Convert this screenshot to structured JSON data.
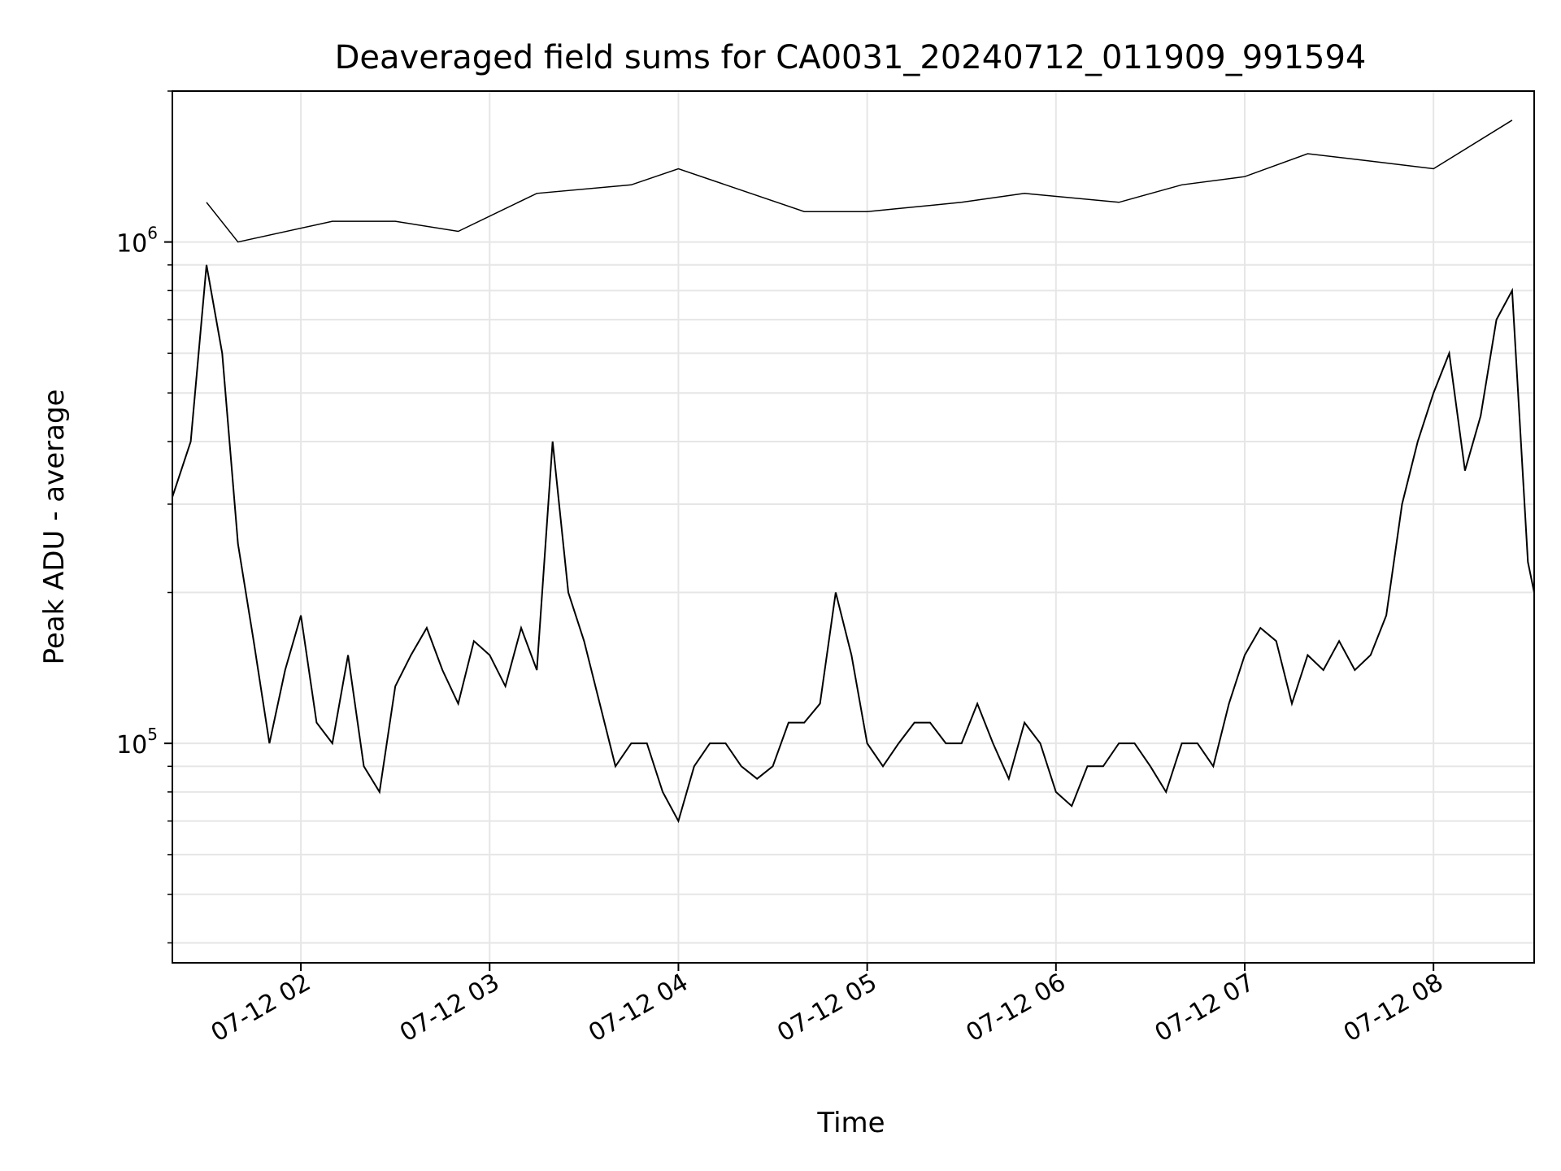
{
  "chart_data": {
    "type": "line",
    "title": "Deaveraged field sums for CA0031_20240712_011909_991594",
    "xlabel": "Time",
    "ylabel": "Peak ADU - average",
    "yscale": "log",
    "ylim": [
      36500,
      2000000
    ],
    "xlim": [
      "2024-07-12 01:19:09",
      "2024-07-12 08:32:00"
    ],
    "grid": true,
    "line_color": "#000000",
    "x_ticks": [
      "07-12 02",
      "07-12 03",
      "07-12 04",
      "07-12 05",
      "07-12 06",
      "07-12 07",
      "07-12 08"
    ],
    "x_tick_times": [
      "2024-07-12 02:00",
      "2024-07-12 03:00",
      "2024-07-12 04:00",
      "2024-07-12 05:00",
      "2024-07-12 06:00",
      "2024-07-12 07:00",
      "2024-07-12 08:00"
    ],
    "y_ticks": [
      {
        "value": 100000,
        "base": "10",
        "exp": "5"
      },
      {
        "value": 1000000,
        "base": "10",
        "exp": "6"
      }
    ],
    "series": [
      {
        "x": [
          "2024-07-12 01:19:09",
          "2024-07-12 01:25",
          "2024-07-12 01:30",
          "2024-07-12 01:35",
          "2024-07-12 01:40",
          "2024-07-12 01:45",
          "2024-07-12 01:50",
          "2024-07-12 01:55",
          "2024-07-12 02:00",
          "2024-07-12 02:05",
          "2024-07-12 02:10",
          "2024-07-12 02:15",
          "2024-07-12 02:20",
          "2024-07-12 02:25",
          "2024-07-12 02:30",
          "2024-07-12 02:35",
          "2024-07-12 02:40",
          "2024-07-12 02:45",
          "2024-07-12 02:50",
          "2024-07-12 02:55",
          "2024-07-12 03:00",
          "2024-07-12 03:05",
          "2024-07-12 03:10",
          "2024-07-12 03:15",
          "2024-07-12 03:20",
          "2024-07-12 03:25",
          "2024-07-12 03:30",
          "2024-07-12 03:35",
          "2024-07-12 03:40",
          "2024-07-12 03:45",
          "2024-07-12 03:50",
          "2024-07-12 03:55",
          "2024-07-12 04:00",
          "2024-07-12 04:05",
          "2024-07-12 04:10",
          "2024-07-12 04:15",
          "2024-07-12 04:20",
          "2024-07-12 04:25",
          "2024-07-12 04:30",
          "2024-07-12 04:35",
          "2024-07-12 04:40",
          "2024-07-12 04:45",
          "2024-07-12 04:50",
          "2024-07-12 04:55",
          "2024-07-12 05:00",
          "2024-07-12 05:05",
          "2024-07-12 05:10",
          "2024-07-12 05:15",
          "2024-07-12 05:20",
          "2024-07-12 05:25",
          "2024-07-12 05:30",
          "2024-07-12 05:35",
          "2024-07-12 05:40",
          "2024-07-12 05:45",
          "2024-07-12 05:50",
          "2024-07-12 05:55",
          "2024-07-12 06:00",
          "2024-07-12 06:05",
          "2024-07-12 06:10",
          "2024-07-12 06:15",
          "2024-07-12 06:20",
          "2024-07-12 06:25",
          "2024-07-12 06:30",
          "2024-07-12 06:35",
          "2024-07-12 06:40",
          "2024-07-12 06:45",
          "2024-07-12 06:50",
          "2024-07-12 06:55",
          "2024-07-12 07:00",
          "2024-07-12 07:05",
          "2024-07-12 07:10",
          "2024-07-12 07:15",
          "2024-07-12 07:20",
          "2024-07-12 07:25",
          "2024-07-12 07:30",
          "2024-07-12 07:35",
          "2024-07-12 07:40",
          "2024-07-12 07:45",
          "2024-07-12 07:50",
          "2024-07-12 07:55",
          "2024-07-12 08:00",
          "2024-07-12 08:05",
          "2024-07-12 08:10",
          "2024-07-12 08:15",
          "2024-07-12 08:20",
          "2024-07-12 08:25",
          "2024-07-12 08:30",
          "2024-07-12 08:32"
        ],
        "y": [
          310000,
          400000,
          900000,
          600000,
          250000,
          160000,
          100000,
          140000,
          180000,
          110000,
          100000,
          150000,
          90000,
          80000,
          130000,
          150000,
          170000,
          140000,
          120000,
          160000,
          150000,
          130000,
          170000,
          140000,
          400000,
          200000,
          160000,
          120000,
          90000,
          100000,
          100000,
          80000,
          70000,
          90000,
          100000,
          100000,
          90000,
          85000,
          90000,
          110000,
          110000,
          120000,
          200000,
          150000,
          100000,
          90000,
          100000,
          110000,
          110000,
          100000,
          100000,
          120000,
          100000,
          85000,
          110000,
          100000,
          80000,
          75000,
          90000,
          90000,
          100000,
          100000,
          90000,
          80000,
          100000,
          100000,
          90000,
          120000,
          150000,
          170000,
          160000,
          120000,
          150000,
          140000,
          160000,
          140000,
          150000,
          180000,
          300000,
          400000,
          500000,
          600000,
          350000,
          450000,
          700000,
          800000,
          230000,
          200000
        ]
      },
      {
        "x": [
          "2024-07-12 01:30",
          "2024-07-12 01:40",
          "2024-07-12 02:10",
          "2024-07-12 02:30",
          "2024-07-12 02:50",
          "2024-07-12 03:15",
          "2024-07-12 03:45",
          "2024-07-12 04:00",
          "2024-07-12 04:15",
          "2024-07-12 04:40",
          "2024-07-12 05:00",
          "2024-07-12 05:30",
          "2024-07-12 05:50",
          "2024-07-12 06:20",
          "2024-07-12 06:40",
          "2024-07-12 07:00",
          "2024-07-12 07:20",
          "2024-07-12 07:40",
          "2024-07-12 08:00",
          "2024-07-12 08:25"
        ],
        "y": [
          1200000,
          1000000,
          1100000,
          1100000,
          1050000,
          1250000,
          1300000,
          1400000,
          1300000,
          1150000,
          1150000,
          1200000,
          1250000,
          1200000,
          1300000,
          1350000,
          1500000,
          1450000,
          1400000,
          1750000
        ]
      }
    ]
  }
}
